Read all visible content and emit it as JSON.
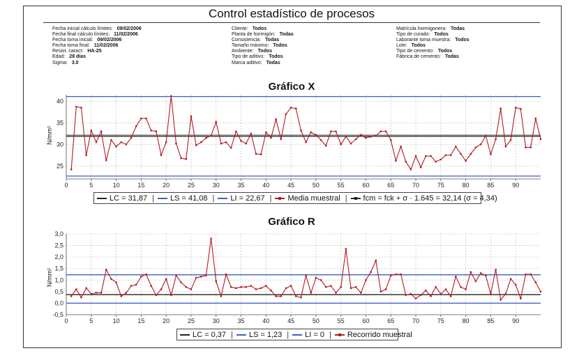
{
  "header": {
    "title": "Control estadístico de procesos",
    "col1": [
      {
        "label": "Fecha inicial cálculo límites:",
        "value": "09/02/2006"
      },
      {
        "label": "Fecha final cálculo límites:",
        "value": "11/02/2006"
      },
      {
        "label": "Fecha toma inicial:",
        "value": "09/02/2006"
      },
      {
        "label": "Fecha toma final:",
        "value": "11/02/2006"
      },
      {
        "label": "Resist. caract:",
        "value": "HA-25"
      },
      {
        "label": "Edad:",
        "value": "28 días"
      },
      {
        "label": "Sigma:",
        "value": "3.0"
      }
    ],
    "col2": [
      {
        "label": "Cliente:",
        "value": "Todos"
      },
      {
        "label": "Planta de hormigón:",
        "value": "Todas"
      },
      {
        "label": "Consistencia:",
        "value": "Todas"
      },
      {
        "label": "Tamaño máximo:",
        "value": "Todos"
      },
      {
        "label": "Ambiente:",
        "value": "Todos"
      },
      {
        "label": "Tipo de aditivo:",
        "value": "Todos"
      },
      {
        "label": "Marca aditivo:",
        "value": "Todas"
      }
    ],
    "col3": [
      {
        "label": "Matrícula hormigonera:",
        "value": "Todas"
      },
      {
        "label": "Tipo de curado:",
        "value": "Todos"
      },
      {
        "label": "Laborante toma muestra:",
        "value": "Todos"
      },
      {
        "label": "Lote:",
        "value": "Todos"
      },
      {
        "label": "Tipo de cemento:",
        "value": "Todos"
      },
      {
        "label": "Fábrica de cemento:",
        "value": "Todas"
      }
    ]
  },
  "colors": {
    "series": "#b01c22",
    "center": "#222222",
    "limits": "#3a5fc4",
    "grid": "#c8c8c8"
  },
  "legend_x": [
    {
      "text": "LC = 31,87",
      "color": "#222222",
      "dot": false
    },
    {
      "text": "LS = 41,08",
      "color": "#3a5fc4",
      "dot": false
    },
    {
      "text": "LI = 22,67",
      "color": "#3a5fc4",
      "dot": false
    },
    {
      "text": "Media muestral",
      "color": "#b01c22",
      "dot": true
    },
    {
      "text": "fcm = fck + σ · 1.645 = 32,14  (σ = 4,34)",
      "color": "#222222",
      "dot": true
    }
  ],
  "legend_r": [
    {
      "text": "LC = 0,37",
      "color": "#222222",
      "dot": false
    },
    {
      "text": "LS = 1,23",
      "color": "#3a5fc4",
      "dot": false
    },
    {
      "text": "LI = 0",
      "color": "#3a5fc4",
      "dot": false
    },
    {
      "text": "Recorrido muestral",
      "color": "#b01c22",
      "dot": true
    }
  ],
  "chart_data": [
    {
      "type": "line",
      "title": "Gráfico X",
      "ylabel": "N/mm²",
      "xlabel": "",
      "xlim": [
        0,
        95
      ],
      "ylim": [
        22,
        41.5
      ],
      "xticks": [
        0,
        5,
        10,
        15,
        20,
        25,
        30,
        35,
        40,
        45,
        50,
        55,
        60,
        65,
        70,
        75,
        80,
        85,
        90
      ],
      "yticks": [
        25,
        30,
        35,
        40
      ],
      "grid": true,
      "reference_lines": [
        {
          "name": "LC",
          "value": 31.87
        },
        {
          "name": "LS",
          "value": 41.08
        },
        {
          "name": "LI",
          "value": 22.67
        },
        {
          "name": "fcm",
          "value": 32.14
        }
      ],
      "series": [
        {
          "name": "Media muestral",
          "x": [
            1,
            2,
            3,
            4,
            5,
            6,
            7,
            8,
            9,
            10,
            11,
            12,
            13,
            14,
            15,
            16,
            17,
            18,
            19,
            20,
            21,
            22,
            23,
            24,
            25,
            26,
            27,
            28,
            29,
            30,
            31,
            32,
            33,
            34,
            35,
            36,
            37,
            38,
            39,
            40,
            41,
            42,
            43,
            44,
            45,
            46,
            47,
            48,
            49,
            50,
            51,
            52,
            53,
            54,
            55,
            56,
            57,
            58,
            59,
            60,
            61,
            62,
            63,
            64,
            65,
            66,
            67,
            68,
            69,
            70,
            71,
            72,
            73,
            74,
            75,
            76,
            77,
            78,
            79,
            80,
            81,
            82,
            83,
            84,
            85,
            86,
            87,
            88,
            89,
            90,
            91,
            92,
            93,
            94,
            95
          ],
          "values": [
            24.2,
            38.7,
            38.5,
            27.5,
            33.2,
            30.5,
            33.0,
            26.3,
            31.0,
            29.5,
            30.5,
            30.0,
            31.5,
            34.2,
            36.0,
            36.0,
            33.2,
            33.0,
            27.5,
            30.5,
            41.2,
            30.2,
            26.8,
            26.6,
            36.5,
            29.8,
            30.5,
            31.5,
            32.0,
            35.2,
            30.2,
            30.5,
            29.2,
            33.0,
            30.8,
            30.2,
            32.5,
            27.8,
            27.7,
            32.8,
            31.5,
            35.8,
            31.2,
            37.0,
            38.5,
            38.3,
            33.2,
            30.5,
            32.8,
            32.2,
            31.0,
            29.7,
            33.0,
            33.0,
            30.0,
            31.8,
            30.2,
            31.2,
            32.2,
            31.5,
            31.8,
            32.0,
            33.0,
            33.0,
            31.0,
            26.2,
            29.5,
            26.0,
            24.2,
            27.3,
            24.7,
            27.3,
            27.3,
            26.0,
            26.5,
            27.5,
            27.5,
            29.5,
            27.8,
            26.2,
            27.8,
            29.3,
            30.0,
            32.0,
            27.7,
            31.2,
            38.3,
            29.5,
            31.0,
            38.5,
            38.2,
            29.3,
            29.3,
            36.0,
            31.2
          ]
        }
      ]
    },
    {
      "type": "line",
      "title": "Gráfico R",
      "ylabel": "N/mm²",
      "xlabel": "",
      "xlim": [
        0,
        95
      ],
      "ylim": [
        -0.5,
        3.0
      ],
      "xticks": [
        0,
        5,
        10,
        15,
        20,
        25,
        30,
        35,
        40,
        45,
        50,
        55,
        60,
        65,
        70,
        75,
        80,
        85,
        90
      ],
      "yticks": [
        "-0,5",
        "0,0",
        "0,5",
        "1,0",
        "1,5",
        "2,0",
        "2,5",
        "3,0"
      ],
      "grid": true,
      "reference_lines": [
        {
          "name": "LC",
          "value": 0.37
        },
        {
          "name": "LS",
          "value": 1.23
        },
        {
          "name": "LI",
          "value": 0
        }
      ],
      "series": [
        {
          "name": "Recorrido muestral",
          "x": [
            1,
            2,
            3,
            4,
            5,
            6,
            7,
            8,
            9,
            10,
            11,
            12,
            13,
            14,
            15,
            16,
            17,
            18,
            19,
            20,
            21,
            22,
            23,
            24,
            25,
            26,
            27,
            28,
            29,
            30,
            31,
            32,
            33,
            34,
            35,
            36,
            37,
            38,
            39,
            40,
            41,
            42,
            43,
            44,
            45,
            46,
            47,
            48,
            49,
            50,
            51,
            52,
            53,
            54,
            55,
            56,
            57,
            58,
            59,
            60,
            61,
            62,
            63,
            64,
            65,
            66,
            67,
            68,
            69,
            70,
            71,
            72,
            73,
            74,
            75,
            76,
            77,
            78,
            79,
            80,
            81,
            82,
            83,
            84,
            85,
            86,
            87,
            88,
            89,
            90,
            91,
            92,
            93,
            94,
            95
          ],
          "values": [
            0.3,
            0.6,
            0.25,
            0.65,
            0.4,
            0.45,
            0.45,
            1.45,
            1.05,
            0.9,
            0.3,
            0.45,
            0.75,
            0.8,
            1.15,
            1.25,
            0.75,
            0.35,
            0.6,
            1.05,
            0.35,
            1.2,
            0.9,
            0.7,
            0.6,
            1.1,
            1.15,
            1.2,
            2.8,
            0.95,
            0.3,
            1.25,
            0.7,
            0.65,
            0.7,
            0.7,
            0.75,
            0.6,
            0.65,
            0.75,
            0.55,
            0.3,
            0.3,
            0.65,
            0.75,
            0.3,
            0.25,
            1.2,
            0.45,
            1.1,
            1.0,
            0.7,
            0.75,
            0.45,
            0.7,
            2.35,
            0.65,
            0.7,
            0.45,
            1.0,
            1.35,
            1.85,
            0.5,
            0.6,
            1.2,
            1.25,
            1.25,
            0.35,
            0.4,
            0.2,
            0.35,
            0.55,
            0.3,
            0.7,
            0.4,
            0.6,
            0.3,
            1.15,
            0.7,
            0.6,
            1.35,
            0.95,
            1.3,
            1.2,
            0.4,
            1.45,
            0.15,
            0.4,
            1.05,
            0.8,
            0.2,
            1.25,
            1.25,
            0.9,
            0.5
          ]
        }
      ]
    }
  ]
}
